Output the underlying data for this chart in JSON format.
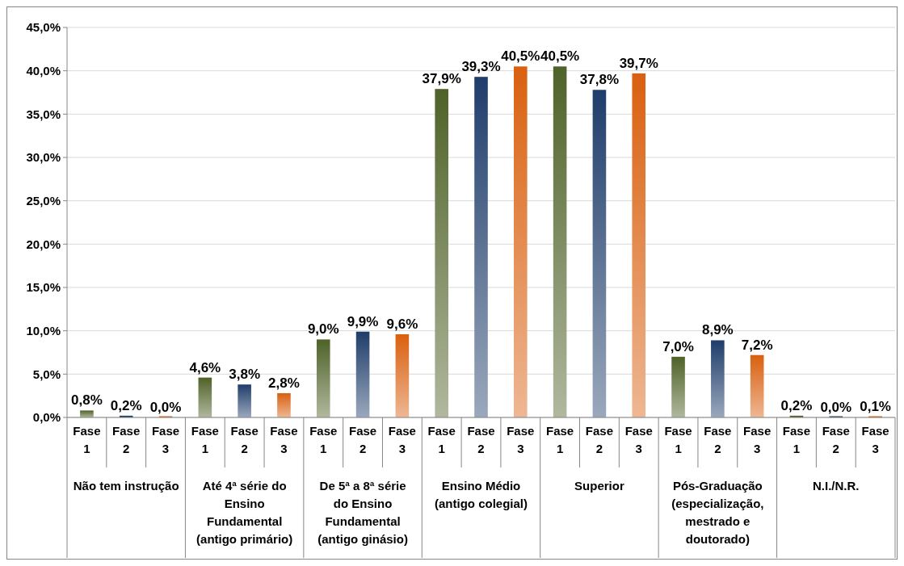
{
  "chart_data": {
    "type": "bar",
    "categories": [
      "Não tem instrução",
      "Até 4ª série do Ensino Fundamental (antigo primário)",
      "De 5ª a 8ª série do Ensino Fundamental (antigo ginásio)",
      "Ensino Médio (antigo colegial)",
      "Superior",
      "Pós-Graduação (especialização, mestrado e doutorado)",
      "N.I./N.R."
    ],
    "series": [
      {
        "name": "Fase 1",
        "color": "#4f6228",
        "values": [
          0.8,
          4.6,
          9.0,
          37.9,
          40.5,
          7.0,
          0.2
        ],
        "value_labels": [
          "0,8%",
          "4,6%",
          "9,0%",
          "37,9%",
          "40,5%",
          "7,0%",
          "0,2%"
        ]
      },
      {
        "name": "Fase 2",
        "color": "#1f3d6b",
        "values": [
          0.2,
          3.8,
          9.9,
          39.3,
          37.8,
          8.9,
          0.0
        ],
        "value_labels": [
          "0,2%",
          "3,8%",
          "9,9%",
          "39,3%",
          "37,8%",
          "8,9%",
          "0,0%"
        ]
      },
      {
        "name": "Fase 3",
        "color": "#d9600f",
        "values": [
          0.0,
          2.8,
          9.6,
          40.5,
          39.7,
          7.2,
          0.1
        ],
        "value_labels": [
          "0,0%",
          "2,8%",
          "9,6%",
          "40,5%",
          "39,7%",
          "7,2%",
          "0,1%"
        ]
      }
    ],
    "ylim": [
      0,
      45
    ],
    "yticks": [
      {
        "value": 0,
        "label": "0,0%"
      },
      {
        "value": 5,
        "label": "5,0%"
      },
      {
        "value": 10,
        "label": "10,0%"
      },
      {
        "value": 15,
        "label": "15,0%"
      },
      {
        "value": 20,
        "label": "20,0%"
      },
      {
        "value": 25,
        "label": "25,0%"
      },
      {
        "value": 30,
        "label": "30,0%"
      },
      {
        "value": 35,
        "label": "35,0%"
      },
      {
        "value": 40,
        "label": "40,0%"
      },
      {
        "value": 45,
        "label": "45,0%"
      }
    ],
    "grid": "y"
  }
}
